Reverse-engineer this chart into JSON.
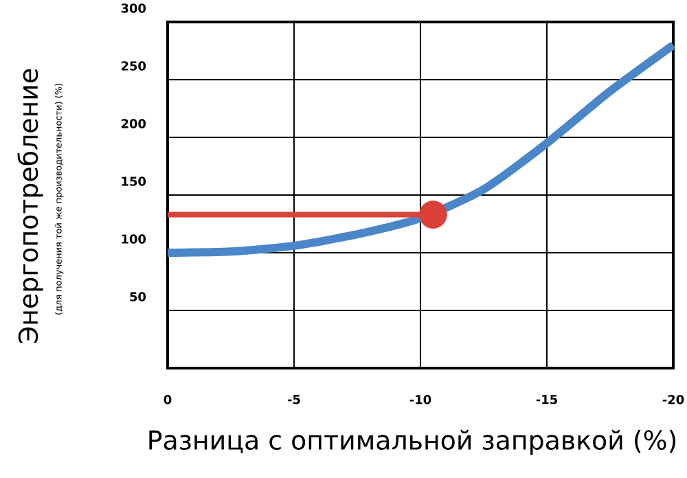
{
  "chart_data": {
    "type": "line",
    "xlabel": "Разница с оптимальной заправкой (%)",
    "ylabel": "Энергопотребление",
    "annotations": [
      "(для получения той же производительности) (%)"
    ],
    "xlim": [
      0,
      -20
    ],
    "xticks": [
      0,
      -5,
      -10,
      -15,
      -20
    ],
    "ylim": [
      0,
      300
    ],
    "yticks": [
      50,
      100,
      150,
      200,
      250,
      300
    ],
    "grid": true,
    "series": [
      {
        "type": "line",
        "color": "#4a86c8",
        "x": [
          0,
          -2.5,
          -5,
          -7.5,
          -10,
          -12.5,
          -15,
          -17.5,
          -20
        ],
        "values": [
          100,
          101,
          106,
          116,
          130,
          155,
          195,
          240,
          280
        ]
      },
      {
        "type": "line",
        "color": "#d9413a",
        "line_style": "solid",
        "x": [
          -10.5,
          0
        ],
        "values": [
          133,
          133
        ]
      },
      {
        "type": "scatter",
        "color": "#d9413a",
        "marker": "circle",
        "x": [
          -10.5
        ],
        "values": [
          133
        ]
      }
    ]
  }
}
